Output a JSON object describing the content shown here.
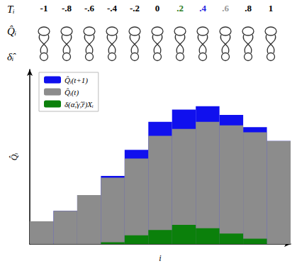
{
  "header": {
    "row_labels": [
      "Tᵢ",
      "Q̂ᵢ",
      "δ̂ᵢ"
    ],
    "t_values": [
      -1,
      {
        "value": -0.8,
        "label": "-.8"
      },
      {
        "value": -0.6,
        "label": "-.6"
      },
      {
        "value": -0.4,
        "label": "-.4"
      },
      {
        "value": -0.2,
        "label": "-.2"
      },
      0,
      {
        "value": 0.2,
        "label": ".2"
      },
      {
        "value": 0.4,
        "label": ".4"
      },
      {
        "value": 0.6,
        "label": ".6"
      },
      {
        "value": 0.8,
        "label": ".8"
      },
      1
    ],
    "t_colors": [
      "#000000",
      "#000000",
      "#000000",
      "#000000",
      "#000000",
      "#000000",
      "#2e7d1e",
      "#1f1fe0",
      "#999999",
      "#000000",
      "#000000"
    ]
  },
  "chart_data": {
    "type": "bar",
    "categories": [
      null,
      null,
      null,
      null,
      null,
      null,
      null,
      null,
      null,
      null,
      null
    ],
    "series": [
      {
        "name": "Q̂ᵢ(t+1)",
        "color": "#1010ee",
        "values": [
          13,
          19,
          28,
          39,
          54,
          70,
          77,
          79,
          74,
          67,
          59
        ]
      },
      {
        "name": "Q̂ᵢ(t)",
        "color": "#8c8c8c",
        "values": [
          13,
          19,
          28,
          38,
          49,
          62,
          66,
          70,
          68,
          64,
          59
        ]
      },
      {
        "name": "δ(α̂,γ̂,r̂)Xᵢ",
        "color": "#0b800b",
        "values": [
          0,
          0,
          0,
          1,
          5,
          8,
          11,
          9,
          6,
          3,
          0
        ]
      }
    ],
    "xlabel": "i",
    "ylabel": "Q̂ᵢ",
    "ylim": [
      0,
      100
    ],
    "legend": "top-left",
    "stacked": false,
    "grid": false,
    "tick_labels": false
  }
}
